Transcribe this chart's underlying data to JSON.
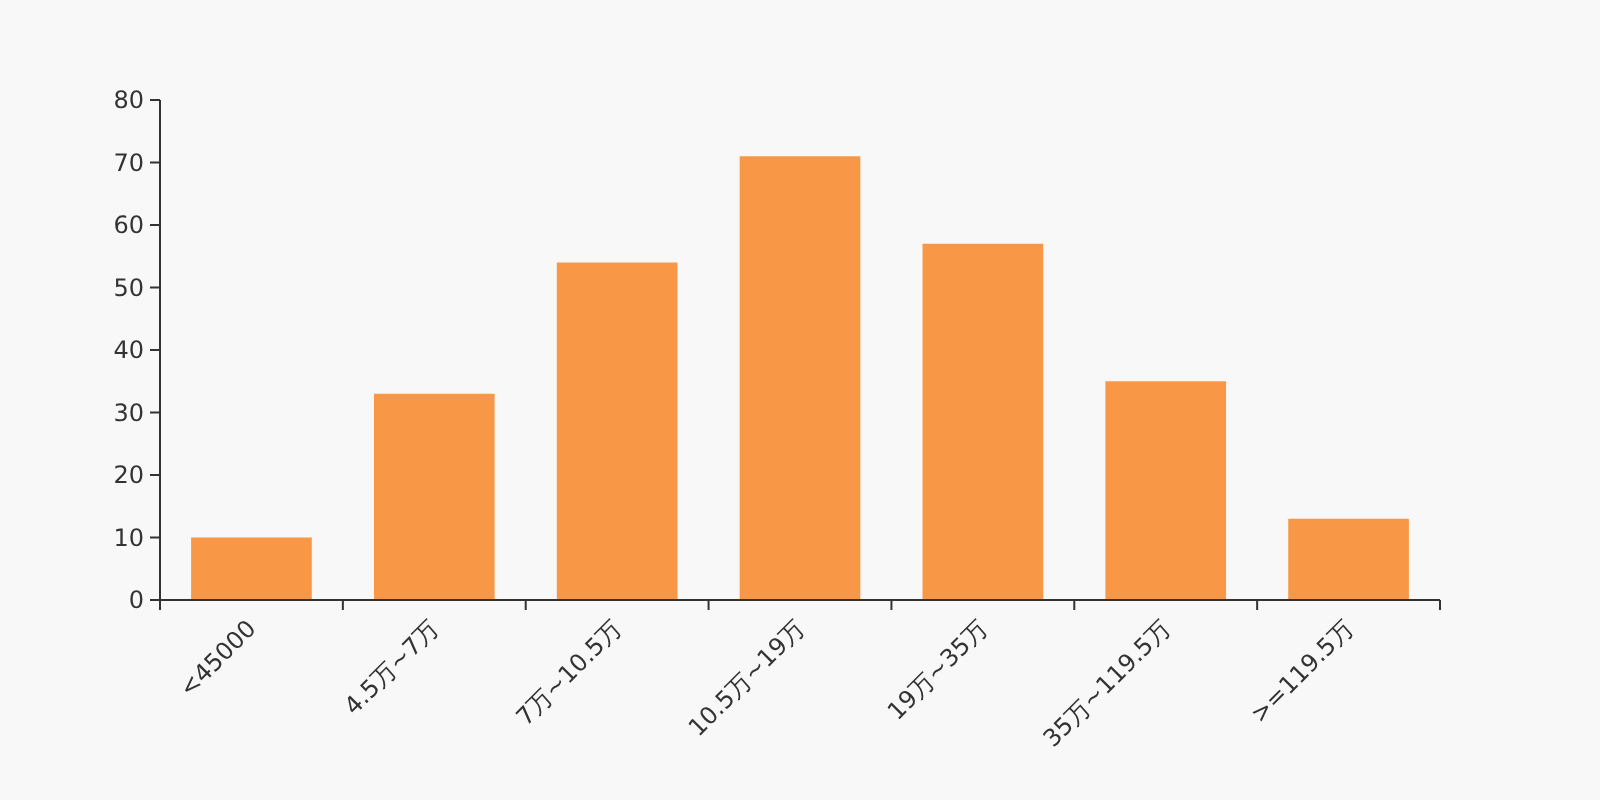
{
  "chart_data": {
    "type": "bar",
    "categories": [
      "<45000",
      "4.5万~7万",
      "7万~10.5万",
      "10.5万~19万",
      "19万~35万",
      "35万~119.5万",
      ">=119.5万"
    ],
    "values": [
      10,
      33,
      54,
      71,
      57,
      35,
      13
    ],
    "color": "#f89847",
    "ylim": [
      0,
      80
    ],
    "yticks": [
      0,
      10,
      20,
      30,
      40,
      50,
      60,
      70,
      80
    ],
    "grid": false
  }
}
